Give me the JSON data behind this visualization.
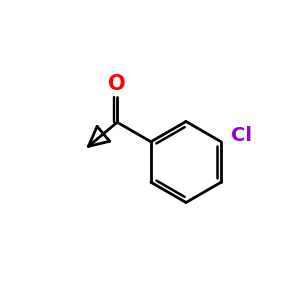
{
  "background_color": "#ffffff",
  "line_color": "#000000",
  "O_color": "#ff0000",
  "Cl_color": "#9900cc",
  "line_width": 2.0,
  "figsize": [
    3.0,
    3.0
  ],
  "dpi": 100,
  "O_label": "O",
  "Cl_label": "Cl",
  "O_fontsize": 15,
  "Cl_fontsize": 14
}
